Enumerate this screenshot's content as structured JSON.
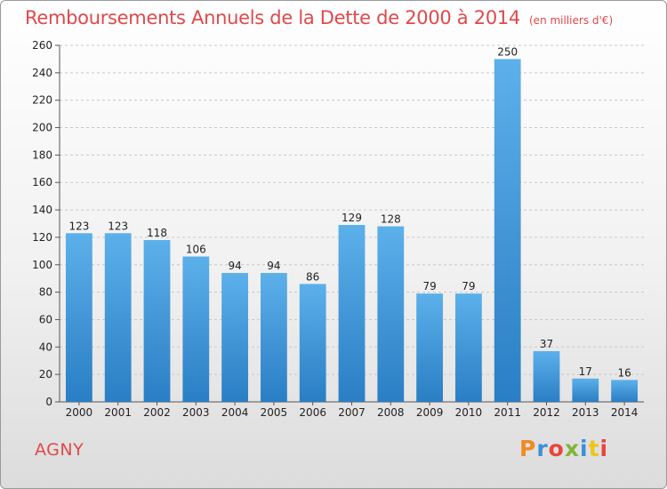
{
  "header": {
    "title": "Remboursements Annuels de la Dette de 2000 à 2014",
    "unit": "(en milliers d'€)"
  },
  "footer": {
    "commune": "AGNY",
    "logo": "Proxiti"
  },
  "colors": {
    "title": "#e0484b",
    "bar_top": "#5cb0ea",
    "bar_bottom": "#2a7ec4",
    "grid": "#c8c8c8"
  },
  "chart_data": {
    "type": "bar",
    "title": "Remboursements Annuels de la Dette de 2000 à 2014",
    "subtitle": "(en milliers d'€)",
    "xlabel": "",
    "ylabel": "",
    "categories": [
      "2000",
      "2001",
      "2002",
      "2003",
      "2004",
      "2005",
      "2006",
      "2007",
      "2008",
      "2009",
      "2010",
      "2011",
      "2012",
      "2013",
      "2014"
    ],
    "values": [
      123,
      123,
      118,
      106,
      94,
      94,
      86,
      129,
      128,
      79,
      79,
      250,
      37,
      17,
      16
    ],
    "ylim": [
      0,
      260
    ],
    "yticks": [
      0,
      20,
      40,
      60,
      80,
      100,
      120,
      140,
      160,
      180,
      200,
      220,
      240,
      260
    ],
    "grid": true,
    "legend": "none"
  }
}
